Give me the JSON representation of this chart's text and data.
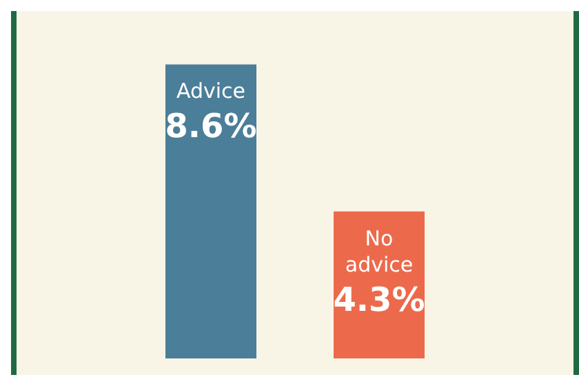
{
  "chart_data": {
    "type": "bar",
    "categories": [
      "Advice",
      "No advice"
    ],
    "values": [
      8.6,
      4.3
    ],
    "colors": [
      "#4b7e98",
      "#ec6a4b"
    ],
    "value_labels": [
      "8.6%",
      "4.3%"
    ]
  }
}
